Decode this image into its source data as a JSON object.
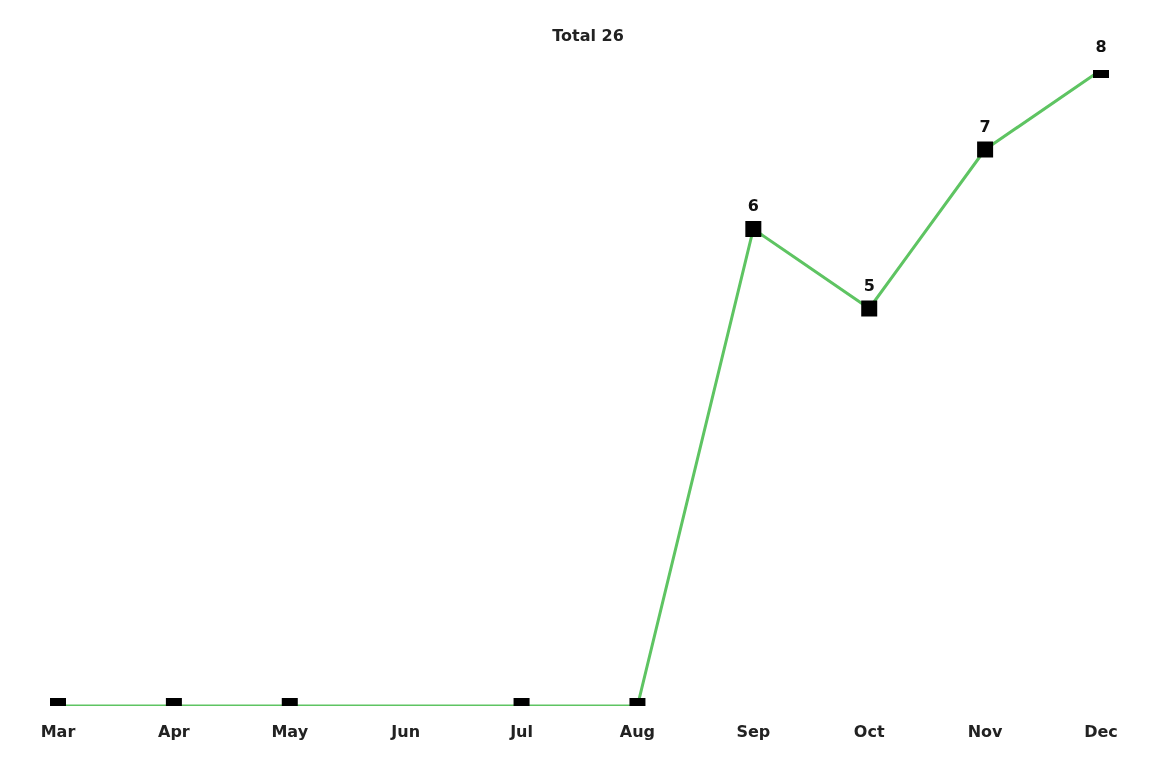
{
  "chart_data": {
    "type": "line",
    "categories": [
      "Mar",
      "Apr",
      "May",
      "Jun",
      "Jul",
      "Aug",
      "Sep",
      "Oct",
      "Nov",
      "Dec"
    ],
    "series": [
      {
        "color": "#5ec462",
        "values": [
          0,
          0,
          0,
          null,
          0,
          0,
          6,
          5,
          7,
          8
        ],
        "value_labels": [
          null,
          null,
          null,
          null,
          null,
          null,
          "6",
          "5",
          "7",
          "8"
        ]
      }
    ],
    "tick_labels": "x",
    "marker": "square",
    "line_style": "solid",
    "legend": false,
    "annotations": [
      "Total 26"
    ]
  }
}
